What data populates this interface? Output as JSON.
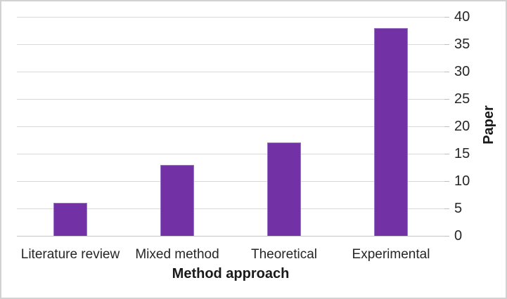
{
  "chart_data": {
    "type": "bar",
    "title": "",
    "categories": [
      "Literature review",
      "Mixed method",
      "Theoretical",
      "Experimental"
    ],
    "values": [
      6,
      13,
      17,
      38
    ],
    "xlabel": "Method approach",
    "ylabel": "Paper",
    "ylim": [
      0,
      40
    ],
    "yticks": [
      0,
      5,
      10,
      15,
      20,
      25,
      30,
      35,
      40
    ],
    "y_axis_side": "right",
    "grid": true,
    "legend_position": "none",
    "bar_color": "#7232a5",
    "bar_border_color": "#9e74c9",
    "gridline_color": "#d9d9d9",
    "tick_color": "#bfbfbf",
    "text_color": "#262626",
    "frame_border_color": "#d2d2d2"
  }
}
